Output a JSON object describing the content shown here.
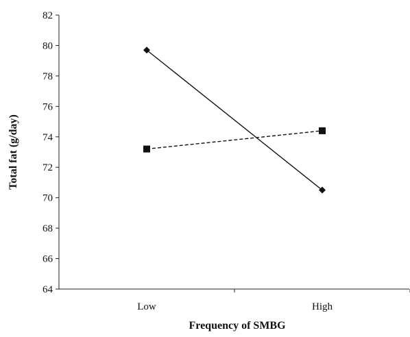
{
  "chart_data": {
    "type": "line",
    "title": "",
    "xlabel": "Frequency of SMBG",
    "ylabel": "Total fat (g/day)",
    "categories": [
      "Low",
      "High"
    ],
    "ylim": [
      64,
      82
    ],
    "yticks": [
      64,
      66,
      68,
      70,
      72,
      74,
      76,
      78,
      80,
      82
    ],
    "grid": false,
    "legend": "none",
    "series": [
      {
        "values": [
          79.7,
          70.5
        ],
        "marker": "diamond",
        "linestyle": "solid"
      },
      {
        "values": [
          73.2,
          74.4
        ],
        "marker": "square",
        "linestyle": "dashed"
      }
    ]
  }
}
